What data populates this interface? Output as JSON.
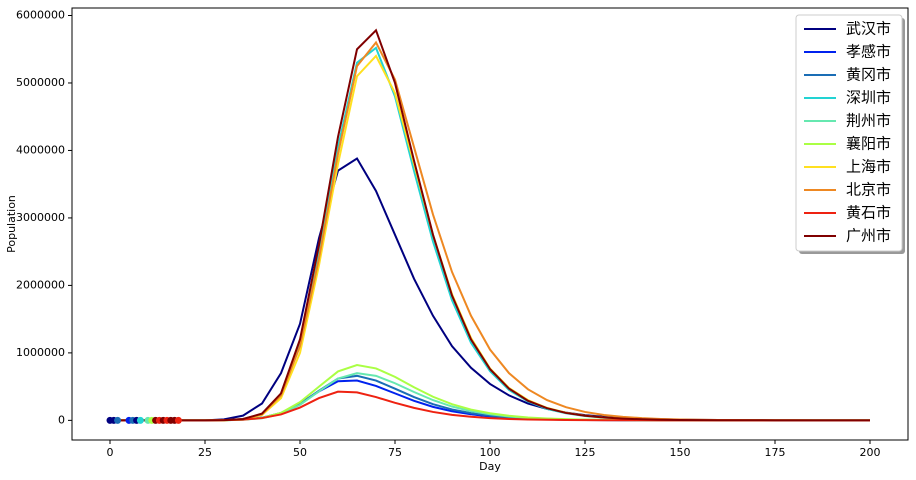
{
  "chart_data": {
    "type": "line",
    "x_label": "Day",
    "y_label": "Population",
    "xlim": [
      -10,
      210
    ],
    "ylim": [
      -291000,
      6111000
    ],
    "xticks": [
      0,
      25,
      50,
      75,
      100,
      125,
      150,
      175,
      200
    ],
    "yticks": [
      0,
      1000000,
      2000000,
      3000000,
      4000000,
      5000000,
      6000000
    ],
    "legend": "upper right",
    "x": [
      0,
      5,
      10,
      15,
      20,
      25,
      30,
      35,
      40,
      45,
      50,
      55,
      60,
      65,
      70,
      75,
      80,
      85,
      90,
      95,
      100,
      105,
      110,
      115,
      120,
      125,
      130,
      135,
      140,
      145,
      150,
      155,
      160,
      165,
      170,
      175,
      180,
      185,
      190,
      195,
      200
    ],
    "series": [
      {
        "name": "武汉市",
        "color": "#000080",
        "values": [
          0,
          0,
          0,
          0,
          0,
          0,
          15000,
          70000,
          250000,
          700000,
          1430000,
          2700000,
          3700000,
          3880000,
          3400000,
          2750000,
          2100000,
          1550000,
          1100000,
          780000,
          540000,
          370000,
          250000,
          170000,
          115000,
          78000,
          53000,
          36000,
          25000,
          17000,
          11000,
          7500,
          5000,
          3400,
          2300,
          1500,
          1000,
          700,
          500,
          300,
          200
        ]
      },
      {
        "name": "孝感市",
        "color": "#0022ee",
        "values": [
          0,
          0,
          0,
          0,
          0,
          0,
          3000,
          12000,
          40000,
          110000,
          250000,
          430000,
          580000,
          590000,
          510000,
          400000,
          290000,
          200000,
          135000,
          90000,
          58000,
          37000,
          24000,
          15000,
          9500,
          6000,
          3800,
          2400,
          1500,
          950,
          600,
          380,
          240,
          150,
          95,
          60,
          38,
          24,
          15,
          10,
          6
        ]
      },
      {
        "name": "黄冈市",
        "color": "#1a6db5",
        "values": [
          0,
          0,
          0,
          0,
          0,
          0,
          2500,
          11000,
          38000,
          105000,
          245000,
          440000,
          620000,
          660000,
          590000,
          470000,
          345000,
          240000,
          162000,
          107000,
          70000,
          45000,
          29000,
          18500,
          11800,
          7500,
          4800,
          3000,
          1900,
          1200,
          780,
          500,
          310,
          200,
          125,
          80,
          50,
          32,
          20,
          13,
          8
        ]
      },
      {
        "name": "深圳市",
        "color": "#22d3d3",
        "values": [
          0,
          0,
          0,
          0,
          0,
          0,
          2500,
          18000,
          95000,
          380000,
          1150000,
          2500000,
          4050000,
          5300000,
          5520000,
          4800000,
          3700000,
          2650000,
          1780000,
          1150000,
          730000,
          450000,
          280000,
          170000,
          105000,
          65000,
          40000,
          24000,
          15000,
          9000,
          5500,
          3400,
          2100,
          1300,
          800,
          500,
          300,
          190,
          120,
          70,
          45
        ]
      },
      {
        "name": "荆州市",
        "color": "#66e8b0",
        "values": [
          0,
          0,
          0,
          0,
          0,
          0,
          2000,
          9000,
          32000,
          95000,
          230000,
          430000,
          620000,
          700000,
          660000,
          550000,
          420000,
          300000,
          205000,
          137000,
          90000,
          58000,
          37000,
          24000,
          15000,
          9700,
          6200,
          4000,
          2500,
          1600,
          1000,
          650,
          410,
          260,
          170,
          105,
          68,
          43,
          27,
          17,
          11
        ]
      },
      {
        "name": "襄阳市",
        "color": "#aaff44",
        "values": [
          0,
          0,
          0,
          0,
          0,
          0,
          2300,
          10500,
          37000,
          111000,
          270000,
          500000,
          725000,
          820000,
          770000,
          645000,
          490000,
          350000,
          240000,
          160000,
          105000,
          68000,
          43000,
          28000,
          17500,
          11300,
          7300,
          4700,
          2900,
          1900,
          1200,
          760,
          480,
          300,
          200,
          125,
          80,
          50,
          32,
          20,
          13
        ]
      },
      {
        "name": "上海市",
        "color": "#ffe020",
        "values": [
          0,
          0,
          0,
          0,
          0,
          0,
          2000,
          15000,
          80000,
          330000,
          1000000,
          2300000,
          3800000,
          5100000,
          5400000,
          4850000,
          3800000,
          2750000,
          1870000,
          1220000,
          770000,
          480000,
          300000,
          185000,
          113000,
          70000,
          43000,
          26000,
          16000,
          10000,
          6000,
          3700,
          2300,
          1400,
          850,
          520,
          320,
          200,
          120,
          75,
          45
        ]
      },
      {
        "name": "北京市",
        "color": "#ee8822",
        "values": [
          0,
          0,
          0,
          0,
          0,
          0,
          2500,
          18000,
          90000,
          370000,
          1100000,
          2400000,
          3950000,
          5250000,
          5600000,
          5050000,
          4050000,
          3050000,
          2200000,
          1550000,
          1050000,
          700000,
          460000,
          300000,
          195000,
          125000,
          80000,
          52000,
          33000,
          21000,
          13500,
          8600,
          5500,
          3500,
          2200,
          1400,
          900,
          580,
          370,
          240,
          150
        ]
      },
      {
        "name": "黄石市",
        "color": "#ee2211",
        "values": [
          0,
          0,
          0,
          0,
          0,
          0,
          3000,
          11000,
          34000,
          88000,
          190000,
          330000,
          425000,
          415000,
          345000,
          260000,
          185000,
          125000,
          82000,
          53000,
          34000,
          21000,
          13500,
          8500,
          5300,
          3300,
          2100,
          1300,
          820,
          520,
          330,
          200,
          130,
          80,
          50,
          32,
          20,
          13,
          8,
          5,
          3
        ]
      },
      {
        "name": "广州市",
        "color": "#800000",
        "values": [
          0,
          0,
          0,
          0,
          0,
          0,
          3000,
          20000,
          100000,
          400000,
          1200000,
          2600000,
          4200000,
          5500000,
          5780000,
          5000000,
          3850000,
          2750000,
          1850000,
          1200000,
          760000,
          470000,
          290000,
          180000,
          110000,
          68000,
          42000,
          26000,
          16000,
          10000,
          6000,
          3800,
          2300,
          1400,
          900,
          550,
          350,
          200,
          130,
          80,
          50
        ]
      }
    ],
    "markers": {
      "x": [
        0,
        1,
        2,
        5,
        6,
        7,
        8,
        10,
        11,
        12,
        13,
        14,
        15,
        16,
        17,
        18
      ],
      "values": [
        0,
        0,
        0,
        0,
        0,
        0,
        0,
        0,
        0,
        0,
        0,
        0,
        0,
        0,
        0,
        0
      ],
      "colors": [
        "#000080",
        "#000080",
        "#1a6db5",
        "#0022ee",
        "#1a6db5",
        "#000080",
        "#22d3d3",
        "#66e8b0",
        "#aaff44",
        "#800000",
        "#ee2211",
        "#800000",
        "#ee2211",
        "#800000",
        "#800000",
        "#ee2211"
      ]
    }
  }
}
